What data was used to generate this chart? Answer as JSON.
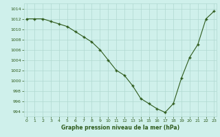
{
  "x": [
    0,
    1,
    2,
    3,
    4,
    5,
    6,
    7,
    8,
    9,
    10,
    11,
    12,
    13,
    14,
    15,
    16,
    17,
    18,
    19,
    20,
    21,
    22,
    23
  ],
  "y": [
    1012,
    1012,
    1012,
    1011.5,
    1011,
    1010.5,
    1009.5,
    1008.5,
    1007.5,
    1006,
    1004,
    1002,
    1001,
    999,
    996.5,
    995.5,
    994.5,
    993.8,
    995.5,
    1000.5,
    1004.5,
    1007,
    1012,
    1013.5
  ],
  "line_color": "#2d5a1b",
  "marker_color": "#2d5a1b",
  "bg_color": "#cff0eb",
  "grid_color": "#b0d8d0",
  "xlabel": "Graphe pression niveau de la mer (hPa)",
  "xlabel_color": "#2d5a1b",
  "yticks": [
    994,
    996,
    998,
    1000,
    1002,
    1004,
    1006,
    1008,
    1010,
    1012,
    1014
  ],
  "xticks": [
    0,
    1,
    2,
    3,
    4,
    5,
    6,
    7,
    8,
    9,
    10,
    11,
    12,
    13,
    14,
    15,
    16,
    17,
    18,
    19,
    20,
    21,
    22,
    23
  ],
  "xlim": [
    -0.3,
    23.3
  ],
  "ylim": [
    993.0,
    1015.0
  ]
}
